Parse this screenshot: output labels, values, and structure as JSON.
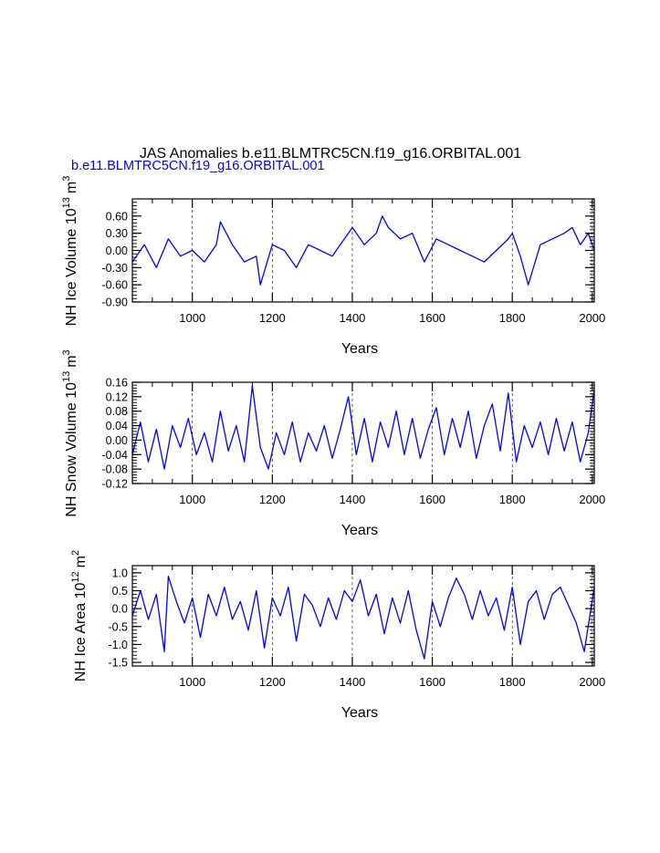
{
  "figure": {
    "title": "JAS Anomalies b.e11.BLMTRC5CN.f19_g16.ORBITAL.001",
    "subtitle": "b.e11.BLMTRC5CN.f19_g16.ORBITAL.001",
    "line_color": "#0000ff",
    "subtitle_color": "#0000ff"
  },
  "chart_data": [
    {
      "type": "line",
      "ylabel": "NH Ice Volume 10",
      "ylabel_exp": "13",
      "ylabel_unit": "m",
      "ylabel_unit_exp": "3",
      "xlabel": "Years",
      "xlim": [
        850,
        2005
      ],
      "ylim": [
        -0.9,
        0.9
      ],
      "x_ticks": [
        1000,
        1200,
        1400,
        1600,
        1800,
        2000
      ],
      "x_tick_labels": [
        "1000",
        "1200",
        "1400",
        "1600",
        "1800",
        "2000"
      ],
      "y_ticks": [
        -0.9,
        -0.6,
        -0.3,
        0.0,
        0.3,
        0.6
      ],
      "y_tick_labels": [
        "-0.90",
        "-0.60",
        "-0.30",
        "0.00",
        "0.30",
        "0.60"
      ],
      "grid": "vertical dashed at major x ticks",
      "series": [
        {
          "x": [
            850,
            880,
            910,
            940,
            970,
            1000,
            1030,
            1060,
            1070,
            1100,
            1130,
            1160,
            1170,
            1200,
            1230,
            1260,
            1290,
            1320,
            1350,
            1380,
            1400,
            1430,
            1460,
            1475,
            1490,
            1520,
            1550,
            1580,
            1610,
            1640,
            1670,
            1700,
            1730,
            1760,
            1790,
            1800,
            1820,
            1840,
            1870,
            1900,
            1930,
            1950,
            1970,
            1990,
            2005
          ],
          "values": [
            -0.2,
            0.1,
            -0.3,
            0.2,
            -0.1,
            0.0,
            -0.2,
            0.1,
            0.5,
            0.1,
            -0.2,
            -0.1,
            -0.6,
            0.1,
            0.0,
            -0.3,
            0.1,
            0.0,
            -0.1,
            0.2,
            0.4,
            0.1,
            0.3,
            0.6,
            0.4,
            0.2,
            0.3,
            -0.2,
            0.2,
            0.1,
            0.0,
            -0.1,
            -0.2,
            0.0,
            0.2,
            0.3,
            -0.1,
            -0.6,
            0.1,
            0.2,
            0.3,
            0.4,
            0.1,
            0.3,
            0.0
          ]
        }
      ]
    },
    {
      "type": "line",
      "ylabel": "NH Snow Volume 10",
      "ylabel_exp": "13",
      "ylabel_unit": "m",
      "ylabel_unit_exp": "3",
      "xlabel": "Years",
      "xlim": [
        850,
        2005
      ],
      "ylim": [
        -0.12,
        0.16
      ],
      "x_ticks": [
        1000,
        1200,
        1400,
        1600,
        1800,
        2000
      ],
      "x_tick_labels": [
        "1000",
        "1200",
        "1400",
        "1600",
        "1800",
        "2000"
      ],
      "y_ticks": [
        -0.12,
        -0.08,
        -0.04,
        0.0,
        0.04,
        0.08,
        0.12,
        0.16
      ],
      "y_tick_labels": [
        "-0.12",
        "-0.08",
        "-0.04",
        "0.00",
        "0.04",
        "0.08",
        "0.12",
        "0.16"
      ],
      "grid": "vertical dashed at major x ticks",
      "series": [
        {
          "x": [
            850,
            870,
            890,
            910,
            930,
            950,
            970,
            990,
            1010,
            1030,
            1050,
            1070,
            1090,
            1110,
            1130,
            1150,
            1170,
            1190,
            1210,
            1230,
            1250,
            1270,
            1290,
            1310,
            1330,
            1350,
            1370,
            1390,
            1410,
            1430,
            1450,
            1470,
            1490,
            1510,
            1530,
            1550,
            1570,
            1590,
            1610,
            1630,
            1650,
            1670,
            1690,
            1710,
            1730,
            1750,
            1770,
            1790,
            1810,
            1830,
            1850,
            1870,
            1890,
            1910,
            1930,
            1950,
            1970,
            1990,
            2005
          ],
          "values": [
            -0.04,
            0.05,
            -0.06,
            0.03,
            -0.08,
            0.04,
            -0.02,
            0.06,
            -0.04,
            0.02,
            -0.06,
            0.08,
            -0.03,
            0.04,
            -0.06,
            0.15,
            -0.02,
            -0.08,
            0.02,
            -0.04,
            0.05,
            -0.06,
            0.02,
            -0.03,
            0.04,
            -0.05,
            0.03,
            0.12,
            -0.04,
            0.06,
            -0.06,
            0.05,
            -0.02,
            0.08,
            -0.04,
            0.06,
            -0.05,
            0.03,
            0.09,
            -0.04,
            0.06,
            -0.02,
            0.08,
            -0.05,
            0.04,
            0.1,
            -0.03,
            0.13,
            -0.06,
            0.04,
            -0.02,
            0.05,
            -0.04,
            0.06,
            -0.03,
            0.05,
            -0.06,
            0.02,
            0.14
          ]
        }
      ]
    },
    {
      "type": "line",
      "ylabel": "NH Ice Area 10",
      "ylabel_exp": "12",
      "ylabel_unit": "m",
      "ylabel_unit_exp": "2",
      "xlabel": "Years",
      "xlim": [
        850,
        2005
      ],
      "ylim": [
        -1.6,
        1.2
      ],
      "x_ticks": [
        1000,
        1200,
        1400,
        1600,
        1800,
        2000
      ],
      "x_tick_labels": [
        "1000",
        "1200",
        "1400",
        "1600",
        "1800",
        "2000"
      ],
      "y_ticks": [
        -1.5,
        -1.0,
        -0.5,
        0.0,
        0.5,
        1.0
      ],
      "y_tick_labels": [
        "-1.5",
        "-1.0",
        "-0.5",
        "0.0",
        "0.5",
        "1.0"
      ],
      "grid": "vertical dashed at major x ticks",
      "series": [
        {
          "x": [
            850,
            870,
            890,
            910,
            930,
            940,
            960,
            980,
            1000,
            1020,
            1040,
            1060,
            1080,
            1100,
            1120,
            1140,
            1160,
            1180,
            1200,
            1220,
            1240,
            1260,
            1280,
            1300,
            1320,
            1340,
            1360,
            1380,
            1400,
            1420,
            1440,
            1460,
            1480,
            1500,
            1520,
            1540,
            1560,
            1580,
            1600,
            1620,
            1640,
            1660,
            1680,
            1700,
            1720,
            1740,
            1760,
            1780,
            1800,
            1820,
            1840,
            1860,
            1880,
            1900,
            1920,
            1940,
            1960,
            1980,
            2005
          ],
          "values": [
            -0.2,
            0.5,
            -0.3,
            0.4,
            -1.2,
            0.9,
            0.2,
            -0.4,
            0.3,
            -0.8,
            0.4,
            -0.2,
            0.6,
            -0.3,
            0.2,
            -0.6,
            0.5,
            -1.1,
            0.3,
            -0.2,
            0.6,
            -0.9,
            0.4,
            0.1,
            -0.5,
            0.3,
            -0.3,
            0.5,
            0.2,
            0.8,
            -0.2,
            0.4,
            -0.7,
            0.3,
            -0.4,
            0.5,
            -0.6,
            -1.4,
            0.2,
            -0.5,
            0.3,
            0.85,
            0.4,
            -0.3,
            0.5,
            -0.2,
            0.3,
            -0.6,
            0.6,
            -1.0,
            0.2,
            0.5,
            -0.3,
            0.4,
            0.6,
            0.1,
            -0.4,
            -1.2,
            0.6
          ]
        }
      ]
    }
  ]
}
